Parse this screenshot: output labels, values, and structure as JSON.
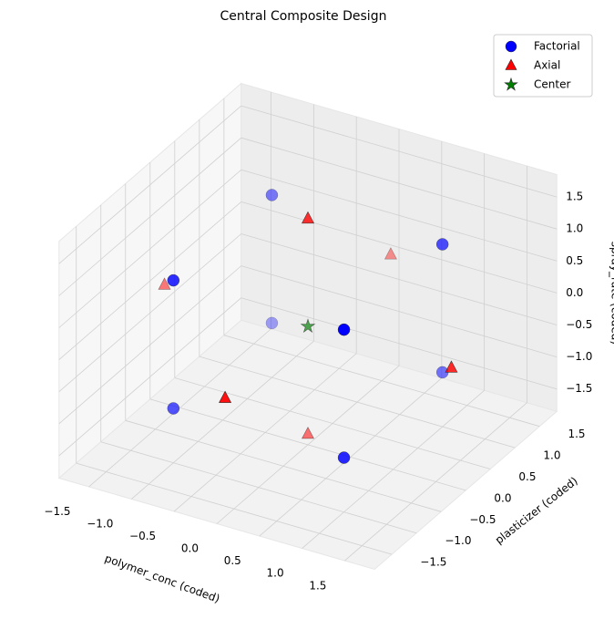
{
  "chart_data": {
    "type": "scatter3d",
    "title": "Central Composite Design",
    "xlabel": "polymer_conc (coded)",
    "ylabel": "plasticizer (coded)",
    "zlabel": "spray_rate (coded)",
    "xlim": [
      -1.85,
      1.85
    ],
    "ylim": [
      -1.85,
      1.85
    ],
    "zlim": [
      -1.85,
      1.85
    ],
    "xticks": [
      {
        "value": -1.5,
        "label": "−1.5"
      },
      {
        "value": -1.0,
        "label": "−1.0"
      },
      {
        "value": -0.5,
        "label": "−0.5"
      },
      {
        "value": 0.0,
        "label": "0.0"
      },
      {
        "value": 0.5,
        "label": "0.5"
      },
      {
        "value": 1.0,
        "label": "1.0"
      },
      {
        "value": 1.5,
        "label": "1.5"
      }
    ],
    "yticks": [
      {
        "value": -1.5,
        "label": "−1.5"
      },
      {
        "value": -1.0,
        "label": "−1.0"
      },
      {
        "value": -0.5,
        "label": "−0.5"
      },
      {
        "value": 0.0,
        "label": "0.0"
      },
      {
        "value": 0.5,
        "label": "0.5"
      },
      {
        "value": 1.0,
        "label": "1.0"
      },
      {
        "value": 1.5,
        "label": "1.5"
      }
    ],
    "zticks": [
      {
        "value": -1.5,
        "label": "−1.5"
      },
      {
        "value": -1.0,
        "label": "−1.0"
      },
      {
        "value": -0.5,
        "label": "−0.5"
      },
      {
        "value": 0.0,
        "label": "0.0"
      },
      {
        "value": 0.5,
        "label": "0.5"
      },
      {
        "value": 1.0,
        "label": "1.0"
      },
      {
        "value": 1.5,
        "label": "1.5"
      }
    ],
    "grid": true,
    "legend": "upper right",
    "series": [
      {
        "name": "Factorial",
        "color": "#0000ff",
        "marker": "circle",
        "x": [
          -1,
          1,
          -1,
          1,
          -1,
          1,
          -1,
          1
        ],
        "y": [
          -1,
          -1,
          1,
          1,
          -1,
          -1,
          1,
          1
        ],
        "z": [
          -1,
          -1,
          -1,
          -1,
          1,
          1,
          1,
          1
        ]
      },
      {
        "name": "Axial",
        "color": "#ff0000",
        "marker": "triangle",
        "x": [
          -1.682,
          1.682,
          0,
          0,
          0,
          0
        ],
        "y": [
          0,
          0,
          -1.682,
          1.682,
          0,
          0
        ],
        "z": [
          0,
          0,
          0,
          0,
          -1.682,
          1.682
        ]
      },
      {
        "name": "Center",
        "color": "#008000",
        "marker": "star",
        "x": [
          0
        ],
        "y": [
          0
        ],
        "z": [
          0
        ]
      }
    ]
  }
}
